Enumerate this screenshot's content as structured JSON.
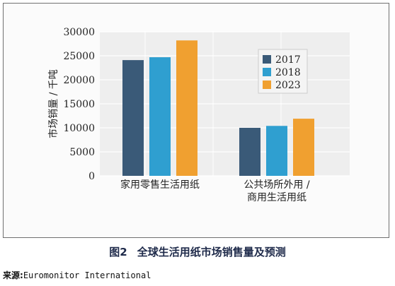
{
  "chart_data": {
    "type": "bar",
    "title": "",
    "xlabel": "",
    "ylabel": "市场销量 / 千吨",
    "ylim": [
      0,
      30000
    ],
    "yticks": [
      0,
      5000,
      10000,
      15000,
      20000,
      25000,
      30000
    ],
    "grid": true,
    "legend_position": "top-right",
    "categories": [
      [
        "家用零售生活用纸"
      ],
      [
        "公共场所外用 /",
        "商用生活用纸"
      ]
    ],
    "series": [
      {
        "name": "2017",
        "color": "#3a5a78",
        "values": [
          24100,
          10000
        ]
      },
      {
        "name": "2018",
        "color": "#2f9fd0",
        "values": [
          24700,
          10400
        ]
      },
      {
        "name": "2023",
        "color": "#f0a030",
        "values": [
          28200,
          11900
        ]
      }
    ]
  },
  "caption": {
    "figure_no": "图2",
    "text": "全球生活用纸市场销售量及预测"
  },
  "source": {
    "label": "来源:",
    "value": "Euromonitor International"
  }
}
